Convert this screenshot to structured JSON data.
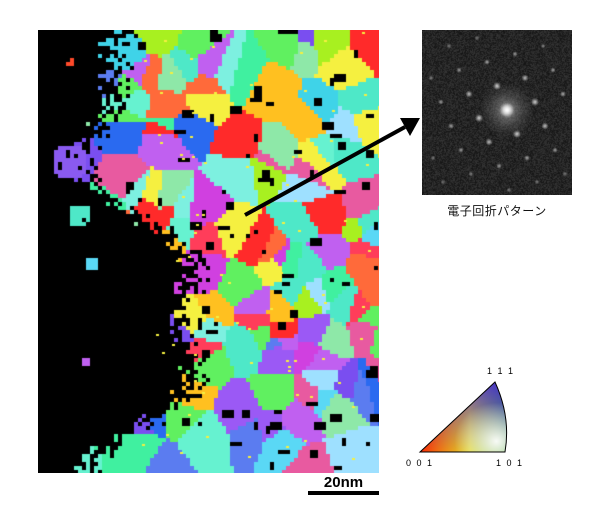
{
  "scale_bar": {
    "label": "20nm"
  },
  "diffraction": {
    "caption": "電子回折パターン"
  },
  "legend": {
    "corner_top": "1 1 1",
    "corner_left": "0 0 1",
    "corner_right": "1 0 1",
    "colors": {
      "001": "#ff0000",
      "101": "#00dd00",
      "111": "#3300ff"
    }
  },
  "colors": {
    "background": "#000000",
    "arrow": "#000000"
  }
}
